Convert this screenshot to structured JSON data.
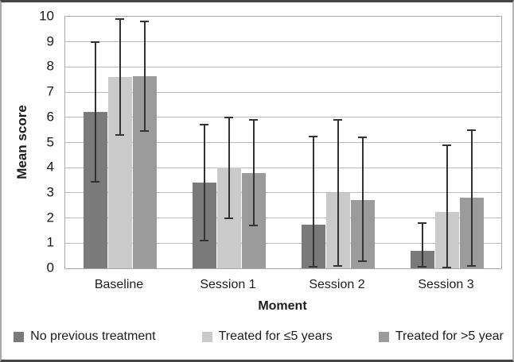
{
  "chart_data": {
    "type": "bar",
    "title": "",
    "xlabel": "Moment",
    "ylabel": "Mean score",
    "ylim": [
      0,
      10
    ],
    "ytick_step": 1,
    "grid": true,
    "legend_position": "bottom",
    "categories": [
      "Baseline",
      "Session 1",
      "Session 2",
      "Session 3"
    ],
    "series": [
      {
        "name": "No previous treatment",
        "color": "#7a7a7a",
        "values": [
          6.2,
          3.4,
          1.75,
          0.7
        ],
        "error_low": [
          3.45,
          1.1,
          0.05,
          0.05
        ],
        "error_high": [
          9.0,
          5.7,
          5.25,
          1.8
        ]
      },
      {
        "name": "Treated for ≤5 years",
        "color": "#cacaca",
        "values": [
          7.6,
          4.0,
          3.0,
          2.25
        ],
        "error_low": [
          5.3,
          2.0,
          0.1,
          0.0
        ],
        "error_high": [
          9.9,
          6.0,
          5.9,
          4.9
        ]
      },
      {
        "name": "Treated for >5 year",
        "color": "#9b9b9b",
        "values": [
          7.65,
          3.8,
          2.7,
          2.8
        ],
        "error_low": [
          5.45,
          1.7,
          0.3,
          0.1
        ],
        "error_high": [
          9.8,
          5.9,
          5.2,
          5.5
        ]
      }
    ],
    "error_bar_color": "#333333"
  },
  "colors": {
    "gridline": "#bdbdbd",
    "plot_border": "#a9a9a9",
    "text": "#1c1c1c"
  }
}
